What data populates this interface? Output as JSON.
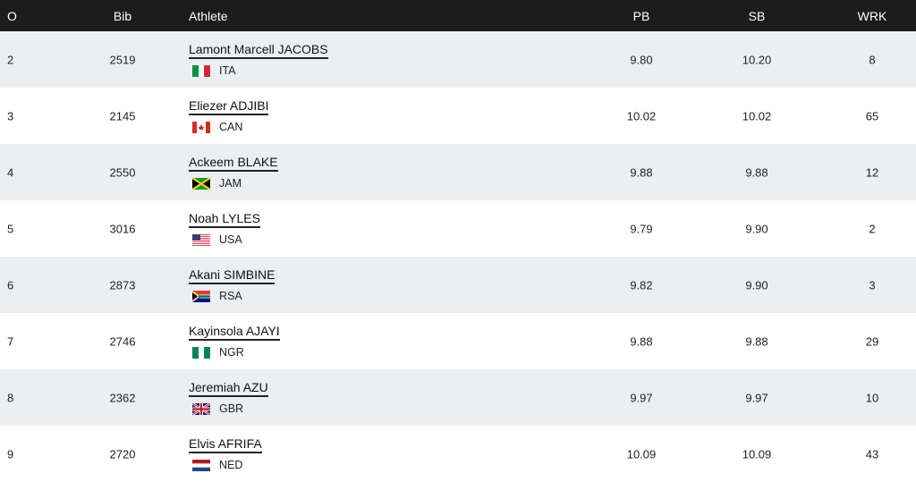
{
  "header": {
    "o": "O",
    "bib": "Bib",
    "athlete": "Athlete",
    "pb": "PB",
    "sb": "SB",
    "wrk": "WRK"
  },
  "rows": [
    {
      "o": "2",
      "bib": "2519",
      "name": "Lamont Marcell JACOBS",
      "country": "ITA",
      "flag": "italy-flag",
      "pb": "9.80",
      "sb": "10.20",
      "wrk": "8"
    },
    {
      "o": "3",
      "bib": "2145",
      "name": "Eliezer ADJIBI",
      "country": "CAN",
      "flag": "canada-flag",
      "pb": "10.02",
      "sb": "10.02",
      "wrk": "65"
    },
    {
      "o": "4",
      "bib": "2550",
      "name": "Ackeem BLAKE",
      "country": "JAM",
      "flag": "jamaica-flag",
      "pb": "9.88",
      "sb": "9.88",
      "wrk": "12"
    },
    {
      "o": "5",
      "bib": "3016",
      "name": "Noah LYLES",
      "country": "USA",
      "flag": "usa-flag",
      "pb": "9.79",
      "sb": "9.90",
      "wrk": "2"
    },
    {
      "o": "6",
      "bib": "2873",
      "name": "Akani SIMBINE",
      "country": "RSA",
      "flag": "south-africa-flag",
      "pb": "9.82",
      "sb": "9.90",
      "wrk": "3"
    },
    {
      "o": "7",
      "bib": "2746",
      "name": "Kayinsola AJAYI",
      "country": "NGR",
      "flag": "nigeria-flag",
      "pb": "9.88",
      "sb": "9.88",
      "wrk": "29"
    },
    {
      "o": "8",
      "bib": "2362",
      "name": "Jeremiah AZU",
      "country": "GBR",
      "flag": "uk-flag",
      "pb": "9.97",
      "sb": "9.97",
      "wrk": "10"
    },
    {
      "o": "9",
      "bib": "2720",
      "name": "Elvis AFRIFA",
      "country": "NED",
      "flag": "netherlands-flag",
      "pb": "10.09",
      "sb": "10.09",
      "wrk": "43"
    }
  ]
}
